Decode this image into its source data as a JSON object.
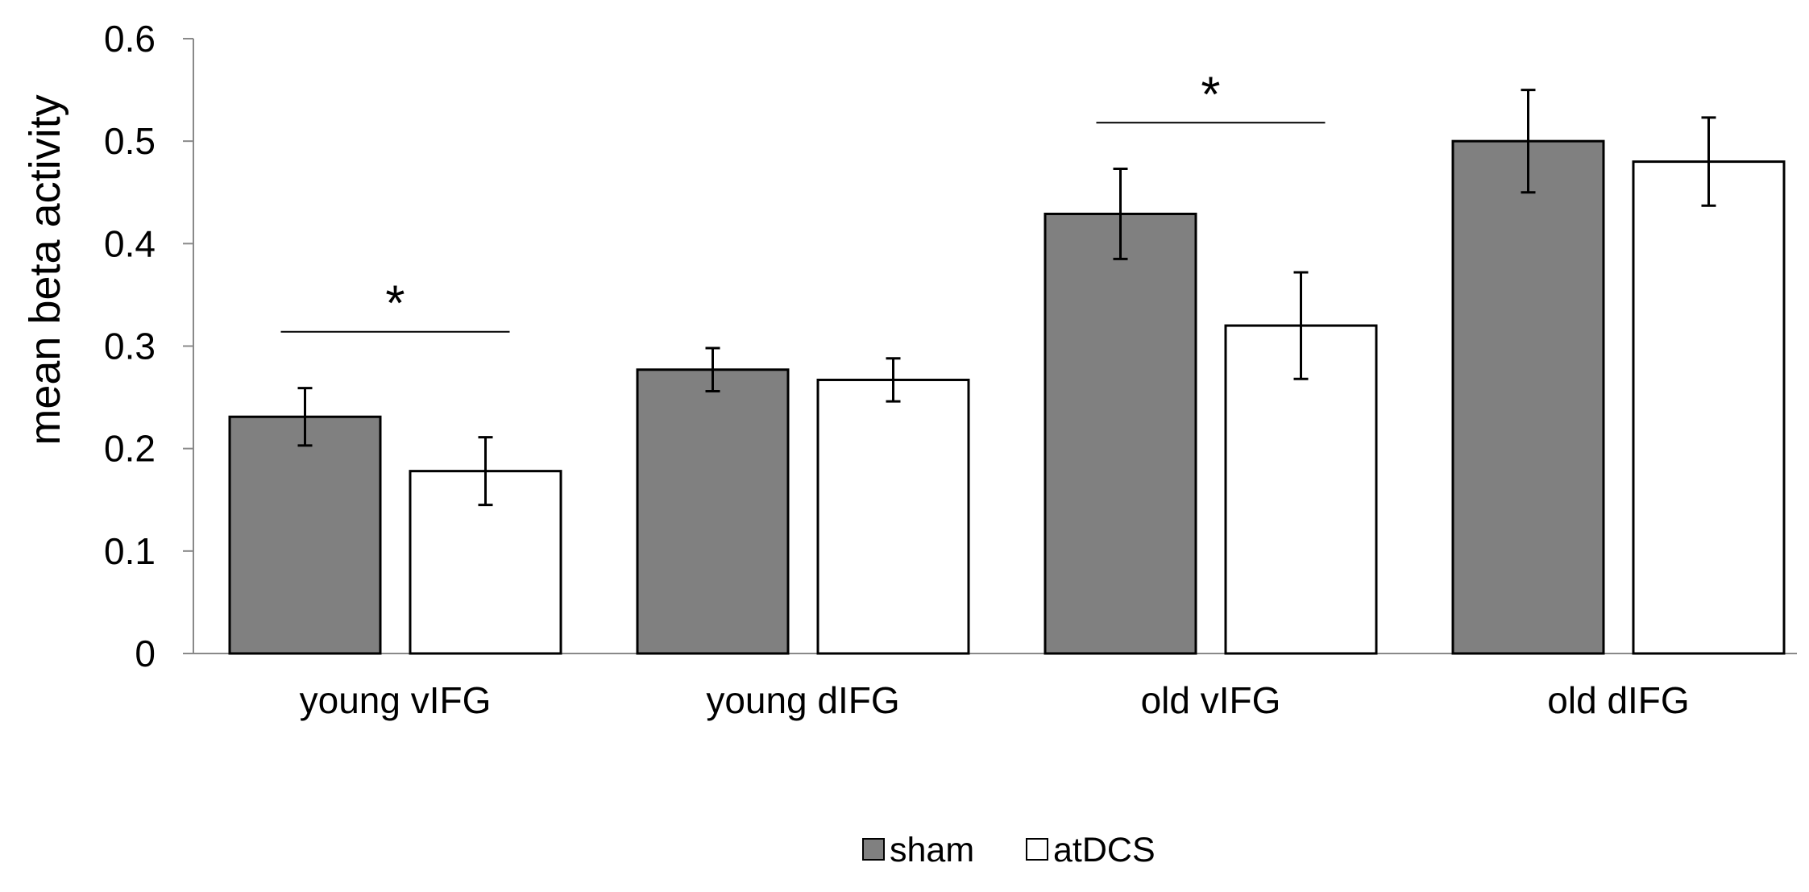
{
  "chart_data": {
    "type": "bar",
    "title": "",
    "xlabel": "",
    "ylabel": "mean beta activity",
    "ylim": [
      0,
      0.6
    ],
    "yticks": [
      0,
      0.1,
      0.2,
      0.3,
      0.4,
      0.5,
      0.6
    ],
    "ytick_labels": [
      "0",
      "0.1",
      "0.2",
      "0.3",
      "0.4",
      "0.5",
      "0.6"
    ],
    "grid": false,
    "legend_position": "bottom-center",
    "categories": [
      "young vIFG",
      "young dIFG",
      "old vIFG",
      "old dIFG"
    ],
    "series": [
      {
        "name": "sham",
        "color": "#808080",
        "values": [
          0.231,
          0.277,
          0.429,
          0.5
        ],
        "error": [
          0.028,
          0.021,
          0.044,
          0.05
        ]
      },
      {
        "name": "atDCS",
        "color": "#ffffff",
        "values": [
          0.178,
          0.267,
          0.32,
          0.48
        ],
        "error": [
          0.033,
          0.021,
          0.052,
          0.043
        ]
      }
    ],
    "annotations": [
      {
        "category": "young vIFG",
        "label": "*",
        "y": 0.314
      },
      {
        "category": "old vIFG",
        "label": "*",
        "y": 0.518
      }
    ]
  }
}
